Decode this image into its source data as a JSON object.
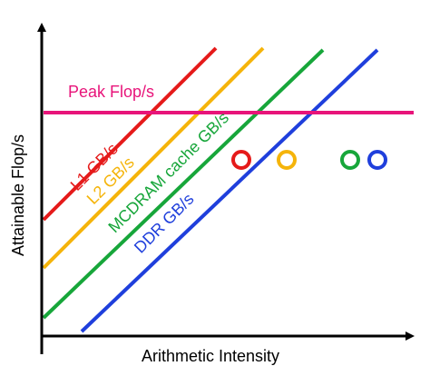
{
  "chart_data": {
    "type": "line",
    "title": "",
    "xlabel": "Arithmetic Intensity",
    "ylabel": "Attainable Flop/s",
    "log_axes": true,
    "tick_labels": false,
    "grid": false,
    "ceiling": {
      "name": "Peak Flop/s",
      "color": "#e8147a"
    },
    "series": [
      {
        "name": "L1 GB/s",
        "color": "#e51a1a",
        "icon": "red-roofline"
      },
      {
        "name": "L2 GB/s",
        "color": "#f5b40a",
        "icon": "yellow-roofline"
      },
      {
        "name": "MCDRAM cache GB/s",
        "color": "#17a63a",
        "icon": "green-roofline"
      },
      {
        "name": "DDR GB/s",
        "color": "#1f3fdc",
        "icon": "blue-roofline"
      }
    ],
    "markers": [
      {
        "color": "#e51a1a",
        "shape": "hollow-circle"
      },
      {
        "color": "#f5b40a",
        "shape": "hollow-circle"
      },
      {
        "color": "#17a63a",
        "shape": "hollow-circle"
      },
      {
        "color": "#1f3fdc",
        "shape": "hollow-circle"
      }
    ]
  }
}
